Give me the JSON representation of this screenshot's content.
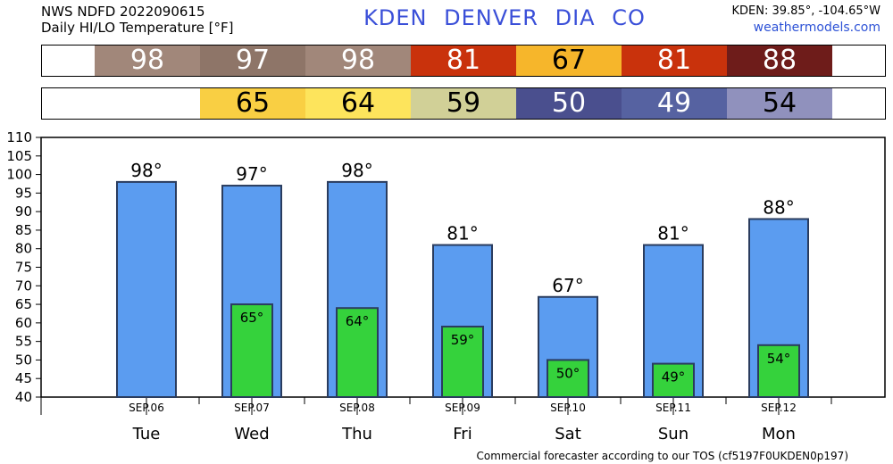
{
  "header": {
    "line1": "NWS NDFD 2022090615",
    "line2": "Daily HI/LO Temperature [°F]",
    "station": "KDEN  DENVER DIA    CO",
    "coords": "KDEN: 39.85°, -104.65°W",
    "site": "weathermodels.com"
  },
  "hi_strip": [
    {
      "value": "98",
      "color": "#a1877a",
      "text_color": "#ffffff"
    },
    {
      "value": "97",
      "color": "#8e7568",
      "text_color": "#ffffff"
    },
    {
      "value": "98",
      "color": "#a1877a",
      "text_color": "#ffffff"
    },
    {
      "value": "81",
      "color": "#c9320c",
      "text_color": "#ffffff"
    },
    {
      "value": "67",
      "color": "#f6b62b",
      "text_color": "#000000"
    },
    {
      "value": "81",
      "color": "#c9320c",
      "text_color": "#ffffff"
    },
    {
      "value": "88",
      "color": "#6e1c1a",
      "text_color": "#ffffff"
    }
  ],
  "lo_strip": [
    {
      "value": "",
      "color": "#ffffff",
      "text_color": "#000000"
    },
    {
      "value": "65",
      "color": "#f9cf43",
      "text_color": "#000000"
    },
    {
      "value": "64",
      "color": "#fde45c",
      "text_color": "#000000"
    },
    {
      "value": "59",
      "color": "#d1d097",
      "text_color": "#000000"
    },
    {
      "value": "50",
      "color": "#4a4f8e",
      "text_color": "#ffffff"
    },
    {
      "value": "49",
      "color": "#5662a1",
      "text_color": "#ffffff"
    },
    {
      "value": "54",
      "color": "#9091bd",
      "text_color": "#000000"
    }
  ],
  "chart_data": {
    "type": "bar",
    "categories": [
      "Tue",
      "Wed",
      "Thu",
      "Fri",
      "Sat",
      "Sun",
      "Mon"
    ],
    "dates": [
      "SEP.06",
      "SEP.07",
      "SEP.08",
      "SEP.09",
      "SEP.10",
      "SEP.11",
      "SEP.12"
    ],
    "series": [
      {
        "values": [
          98,
          97,
          98,
          81,
          67,
          81,
          88
        ],
        "color": "#5b9cf0"
      },
      {
        "values": [
          null,
          65,
          64,
          59,
          50,
          49,
          54
        ],
        "color": "#35d23c"
      }
    ],
    "hi_labels": [
      "98°",
      "97°",
      "98°",
      "81°",
      "67°",
      "81°",
      "88°"
    ],
    "lo_labels": [
      "",
      "65°",
      "64°",
      "59°",
      "50°",
      "49°",
      "54°"
    ],
    "yticks": [
      110,
      105,
      100,
      95,
      90,
      85,
      80,
      75,
      70,
      65,
      60,
      55,
      50,
      45,
      40
    ],
    "ylim": [
      40,
      110
    ],
    "grid": false,
    "legend": "none"
  },
  "footer": "Commercial forecaster according to our TOS (cf5197F0UKDEN0p197)"
}
